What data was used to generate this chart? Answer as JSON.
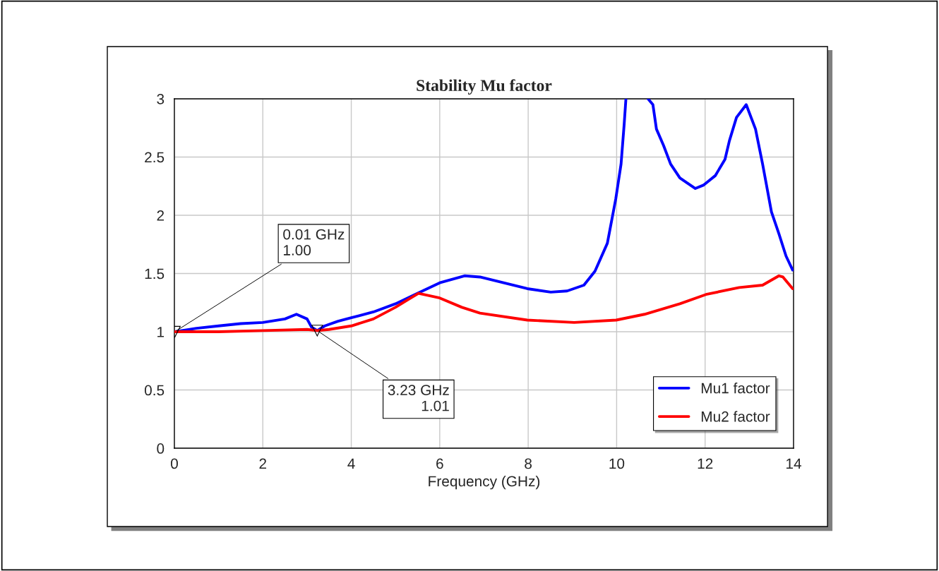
{
  "chart_data": {
    "type": "line",
    "title": "Stability Mu factor",
    "xlabel": "Frequency (GHz)",
    "xlim": [
      0,
      14
    ],
    "xticks": [
      0,
      2,
      4,
      6,
      8,
      10,
      12,
      14
    ],
    "ylim": [
      0,
      3
    ],
    "yticks": [
      0,
      0.5,
      1,
      1.5,
      2,
      2.5,
      3
    ],
    "grid": true,
    "legend": "bottom right",
    "line_style": "solid",
    "series": [
      {
        "name": "Mu1 factor",
        "color": "#0000ff",
        "x": [
          0.01,
          0.5,
          1,
          1.5,
          2,
          2.5,
          2.76,
          3.0,
          3.1,
          3.23,
          3.4,
          3.7,
          4,
          4.5,
          5,
          5.5,
          6,
          6.56,
          6.91,
          7.98,
          8.51,
          8.88,
          9.26,
          9.51,
          9.79,
          9.98,
          10.1,
          10.17,
          10.21,
          10.45,
          10.71,
          10.82,
          10.9,
          11.06,
          11.22,
          11.43,
          11.78,
          11.97,
          12.23,
          12.45,
          12.55,
          12.71,
          12.93,
          13.14,
          13.3,
          13.5,
          13.67,
          13.83,
          13.98
        ],
        "values": [
          1.0,
          1.03,
          1.05,
          1.07,
          1.08,
          1.11,
          1.15,
          1.11,
          1.04,
          1.01,
          1.05,
          1.09,
          1.12,
          1.17,
          1.24,
          1.33,
          1.42,
          1.48,
          1.47,
          1.37,
          1.34,
          1.35,
          1.4,
          1.52,
          1.76,
          2.14,
          2.44,
          2.78,
          3.0,
          null,
          3.0,
          2.95,
          2.74,
          2.6,
          2.44,
          2.32,
          2.23,
          2.26,
          2.34,
          2.48,
          2.64,
          2.84,
          2.95,
          2.74,
          2.44,
          2.03,
          1.84,
          1.65,
          1.53
        ]
      },
      {
        "name": "Mu2 factor",
        "color": "#ff0000",
        "x": [
          0.01,
          1,
          2,
          3,
          3.23,
          3.5,
          4,
          4.5,
          5,
          5.3,
          5.52,
          6,
          6.5,
          6.91,
          7.98,
          9.04,
          9.99,
          10.63,
          11.43,
          12.02,
          12.77,
          13.3,
          13.67,
          13.76,
          13.98
        ],
        "values": [
          1.0,
          1.0,
          1.01,
          1.02,
          1.01,
          1.02,
          1.05,
          1.11,
          1.21,
          1.28,
          1.33,
          1.29,
          1.21,
          1.16,
          1.1,
          1.08,
          1.1,
          1.15,
          1.24,
          1.32,
          1.38,
          1.4,
          1.48,
          1.47,
          1.37
        ]
      }
    ],
    "annotations": [
      {
        "text": "0.01 GHz\n1.00",
        "x": 0.01,
        "y": 1.0
      },
      {
        "text": "3.23 GHz\n1.01",
        "x": 3.23,
        "y": 1.01
      }
    ]
  }
}
